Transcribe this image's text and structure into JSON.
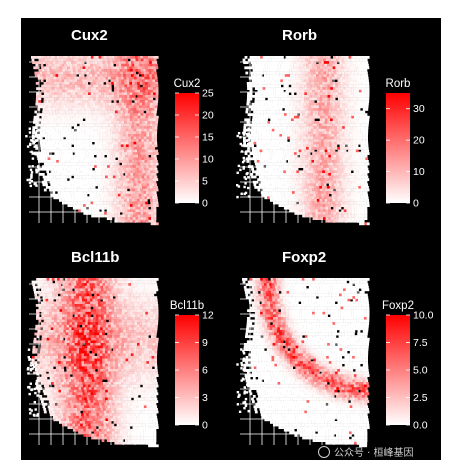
{
  "chart_data": [
    {
      "type": "heatmap",
      "title": "Cux2",
      "legend_title": "Cux2",
      "ticks": [
        0,
        5,
        10,
        15,
        20,
        25
      ],
      "tick_labels": [
        "0",
        "5",
        "10",
        "15",
        "20",
        "25"
      ],
      "range": [
        0,
        25
      ],
      "colors": {
        "low": "#ffffff",
        "high": "#ff0000"
      },
      "pattern": "upper"
    },
    {
      "type": "heatmap",
      "title": "Rorb",
      "legend_title": "Rorb",
      "ticks": [
        0,
        10,
        20,
        30
      ],
      "tick_labels": [
        "0",
        "10",
        "20",
        "30"
      ],
      "range": [
        0,
        35
      ],
      "colors": {
        "low": "#ffffff",
        "high": "#ff0000"
      },
      "pattern": "middle"
    },
    {
      "type": "heatmap",
      "title": "Bcl11b",
      "legend_title": "Bcl11b",
      "ticks": [
        0,
        3,
        6,
        9,
        12
      ],
      "tick_labels": [
        "0",
        "3",
        "6",
        "9",
        "12"
      ],
      "range": [
        0,
        12
      ],
      "colors": {
        "low": "#ffffff",
        "high": "#ff0000"
      },
      "pattern": "deep"
    },
    {
      "type": "heatmap",
      "title": "Foxp2",
      "legend_title": "Foxp2",
      "ticks": [
        0,
        2.5,
        5,
        7.5,
        10
      ],
      "tick_labels": [
        "0.0",
        "2.5",
        "5.0",
        "7.5",
        "10.0"
      ],
      "range": [
        0,
        10
      ],
      "colors": {
        "low": "#ffffff",
        "high": "#ff0000"
      },
      "pattern": "arc"
    }
  ],
  "watermark": {
    "text": "公众号 · 桓峰基因",
    "icon": "wechat-icon"
  }
}
